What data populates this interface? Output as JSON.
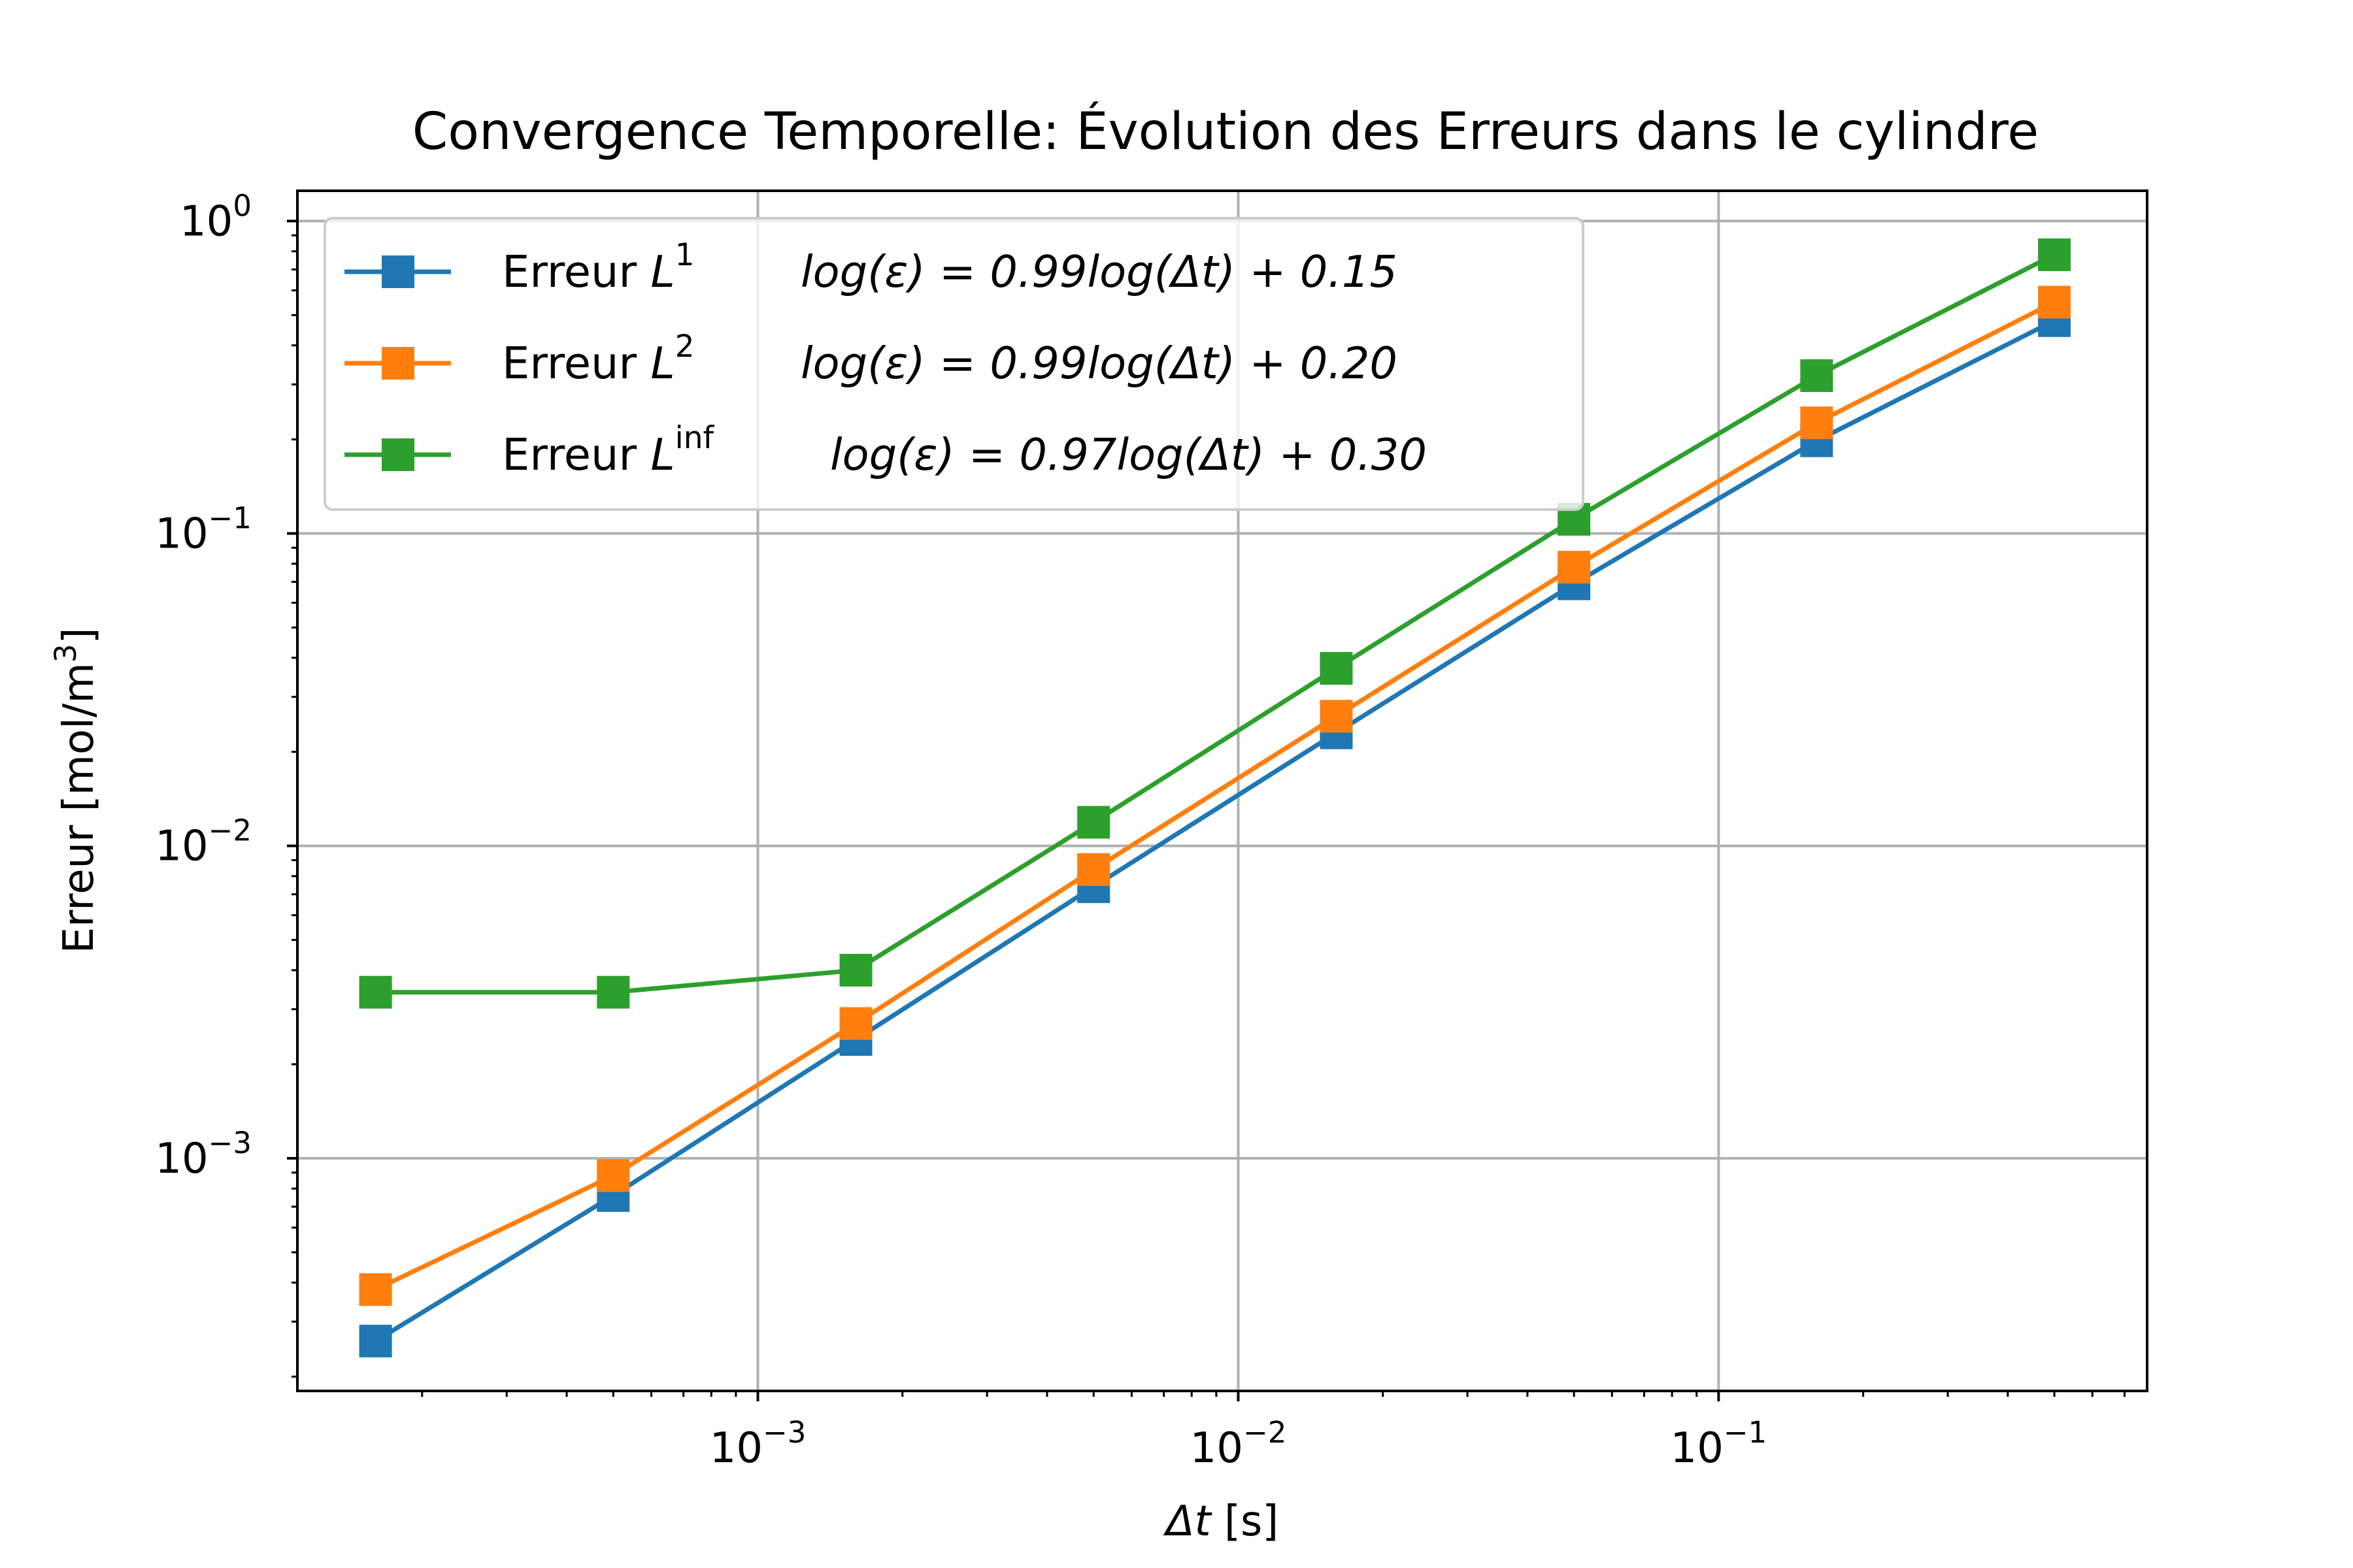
{
  "chart_data": {
    "type": "line",
    "title": "Convergence Temporelle: Évolution des Erreurs dans le cylindre",
    "xlabel": {
      "symbol": "Δt",
      "unit": "[s]"
    },
    "ylabel": {
      "text": "Erreur [mol/m",
      "sup": "3",
      "close": "]"
    },
    "xscale": "log",
    "yscale": "log",
    "xlim": [
      0.00011,
      0.78
    ],
    "ylim": [
      0.00018,
      1.25
    ],
    "grid": true,
    "legend_position": "top-left",
    "x_ticks": [
      {
        "value": 0.001,
        "base": "10",
        "exp": "−3"
      },
      {
        "value": 0.01,
        "base": "10",
        "exp": "−2"
      },
      {
        "value": 0.1,
        "base": "10",
        "exp": "−1"
      }
    ],
    "y_ticks": [
      {
        "value": 0.001,
        "base": "10",
        "exp": "−3"
      },
      {
        "value": 0.01,
        "base": "10",
        "exp": "−2"
      },
      {
        "value": 0.1,
        "base": "10",
        "exp": "−1"
      },
      {
        "value": 1,
        "base": "10",
        "exp": "0"
      }
    ],
    "x": [
      0.00016,
      0.0005,
      0.0016,
      0.005,
      0.016,
      0.05,
      0.16,
      0.5
    ],
    "series": [
      {
        "name": "Erreur L1",
        "legend_label": {
          "prefix": "Erreur ",
          "var": "L",
          "sup": "1",
          "formula": "log(ε) = 0.99log(Δt) + 0.15"
        },
        "color": "#1f77b4",
        "values": [
          0.00026,
          0.00076,
          0.0024,
          0.0074,
          0.023,
          0.069,
          0.198,
          0.48
        ]
      },
      {
        "name": "Erreur L2",
        "legend_label": {
          "prefix": "Erreur ",
          "var": "L",
          "sup": "2",
          "formula": "log(ε) = 0.99log(Δt) + 0.20"
        },
        "color": "#ff7f0e",
        "values": [
          0.00038,
          0.00088,
          0.0027,
          0.0084,
          0.026,
          0.078,
          0.226,
          0.55
        ]
      },
      {
        "name": "Erreur Linf",
        "legend_label": {
          "prefix": "Erreur ",
          "var": "L",
          "sup": "inf",
          "formula": "log(ε) = 0.97log(Δt) + 0.30"
        },
        "color": "#2ca02c",
        "values": [
          0.0034,
          0.0034,
          0.004,
          0.0119,
          0.037,
          0.111,
          0.32,
          0.78
        ]
      }
    ]
  }
}
